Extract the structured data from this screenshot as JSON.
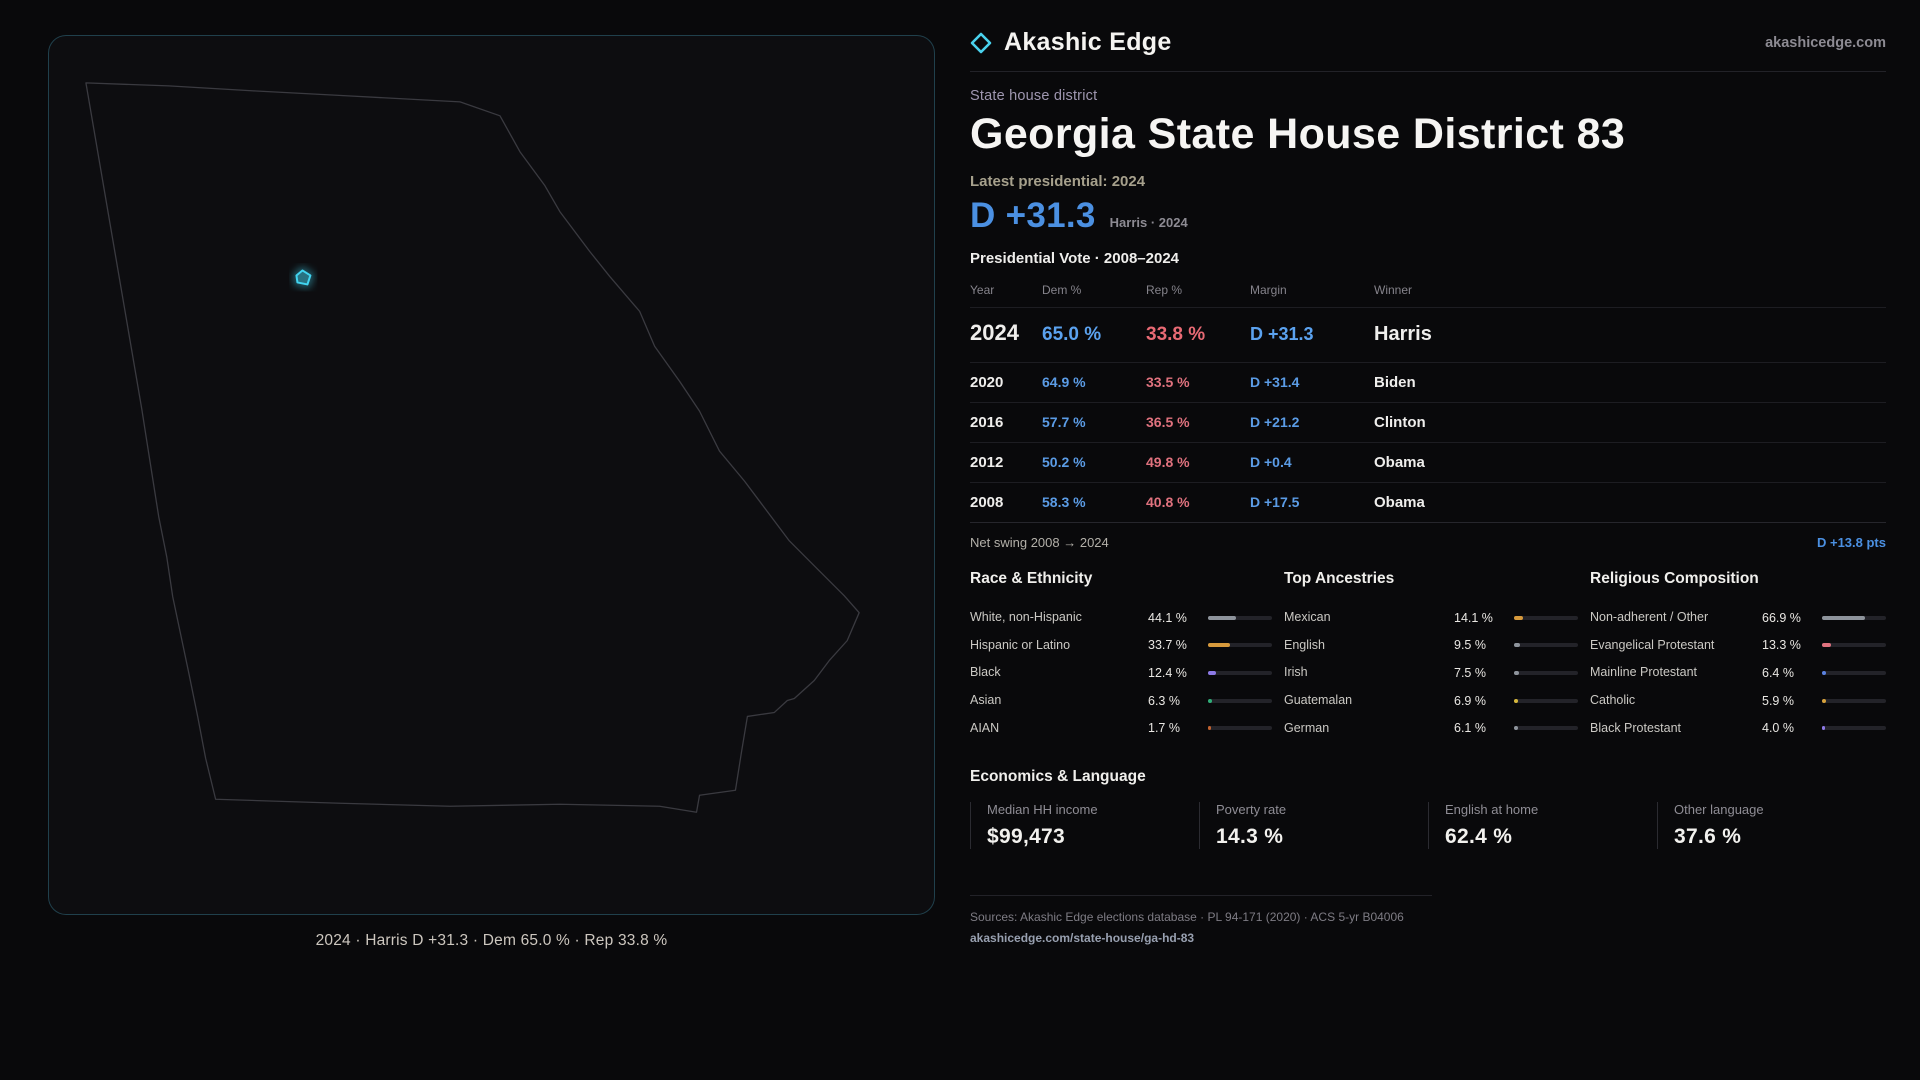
{
  "brand": {
    "name": "Akashic Edge",
    "domain": "akashicedge.com"
  },
  "colors": {
    "dem": "#4b90e2",
    "rep": "#e0727e",
    "accent_cyan": "#41d4f0"
  },
  "map": {
    "caption": "2024 · Harris D +31.3 · Dem 65.0 % · Rep 33.8 %"
  },
  "header": {
    "district_type": "State house district",
    "title": "Georgia State House District 83",
    "latest_label": "Latest presidential: 2024",
    "margin_big": "D +31.3",
    "margin_context": "Harris · 2024"
  },
  "table": {
    "title": "Presidential Vote · 2008–2024",
    "columns": [
      "Year",
      "Dem %",
      "Rep %",
      "Margin",
      "Winner"
    ],
    "rows": [
      {
        "year": "2024",
        "dem": "65.0 %",
        "rep": "33.8 %",
        "margin": "D +31.3",
        "winner": "Harris"
      },
      {
        "year": "2020",
        "dem": "64.9 %",
        "rep": "33.5 %",
        "margin": "D +31.4",
        "winner": "Biden"
      },
      {
        "year": "2016",
        "dem": "57.7 %",
        "rep": "36.5 %",
        "margin": "D +21.2",
        "winner": "Clinton"
      },
      {
        "year": "2012",
        "dem": "50.2 %",
        "rep": "49.8 %",
        "margin": "D +0.4",
        "winner": "Obama"
      },
      {
        "year": "2008",
        "dem": "58.3 %",
        "rep": "40.8 %",
        "margin": "D +17.5",
        "winner": "Obama"
      }
    ],
    "net_swing_label": "Net swing 2008 → 2024",
    "net_swing_value": "D +13.8 pts"
  },
  "demographics": [
    {
      "title": "Race & Ethnicity",
      "items": [
        {
          "label": "White, non-Hispanic",
          "display": "44.1 %",
          "value": 44.1,
          "color": "#8e949c"
        },
        {
          "label": "Hispanic or Latino",
          "display": "33.7 %",
          "value": 33.7,
          "color": "#d79a3c"
        },
        {
          "label": "Black",
          "display": "12.4 %",
          "value": 12.4,
          "color": "#8d7ae6"
        },
        {
          "label": "Asian",
          "display": "6.3 %",
          "value": 6.3,
          "color": "#2fae78"
        },
        {
          "label": "AIAN",
          "display": "1.7 %",
          "value": 1.7,
          "color": "#c2622f"
        }
      ]
    },
    {
      "title": "Top Ancestries",
      "items": [
        {
          "label": "Mexican",
          "display": "14.1 %",
          "value": 14.1,
          "color": "#d79a3c"
        },
        {
          "label": "English",
          "display": "9.5 %",
          "value": 9.5,
          "color": "#8e949c"
        },
        {
          "label": "Irish",
          "display": "7.5 %",
          "value": 7.5,
          "color": "#8e949c"
        },
        {
          "label": "Guatemalan",
          "display": "6.9 %",
          "value": 6.9,
          "color": "#d7b83c"
        },
        {
          "label": "German",
          "display": "6.1 %",
          "value": 6.1,
          "color": "#8e949c"
        }
      ]
    },
    {
      "title": "Religious Composition",
      "items": [
        {
          "label": "Non-adherent / Other",
          "display": "66.9 %",
          "value": 66.9,
          "color": "#8e949c"
        },
        {
          "label": "Evangelical Protestant",
          "display": "13.3 %",
          "value": 13.3,
          "color": "#e0727e"
        },
        {
          "label": "Mainline Protestant",
          "display": "6.4 %",
          "value": 6.4,
          "color": "#5b82e0"
        },
        {
          "label": "Catholic",
          "display": "5.9 %",
          "value": 5.9,
          "color": "#d7a23c"
        },
        {
          "label": "Black Protestant",
          "display": "4.0 %",
          "value": 4.0,
          "color": "#8d7ae6"
        }
      ]
    }
  ],
  "economics": {
    "title": "Economics & Language",
    "stats": [
      {
        "label": "Median HH income",
        "value": "$99,473"
      },
      {
        "label": "Poverty rate",
        "value": "14.3 %"
      },
      {
        "label": "English at home",
        "value": "62.4 %"
      },
      {
        "label": "Other language",
        "value": "37.6 %"
      }
    ]
  },
  "footer": {
    "sources": "Sources: Akashic Edge elections database · PL 94-171 (2020) · ACS 5-yr B04006",
    "permalink": "akashicedge.com/state-house/ga-hd-83"
  }
}
